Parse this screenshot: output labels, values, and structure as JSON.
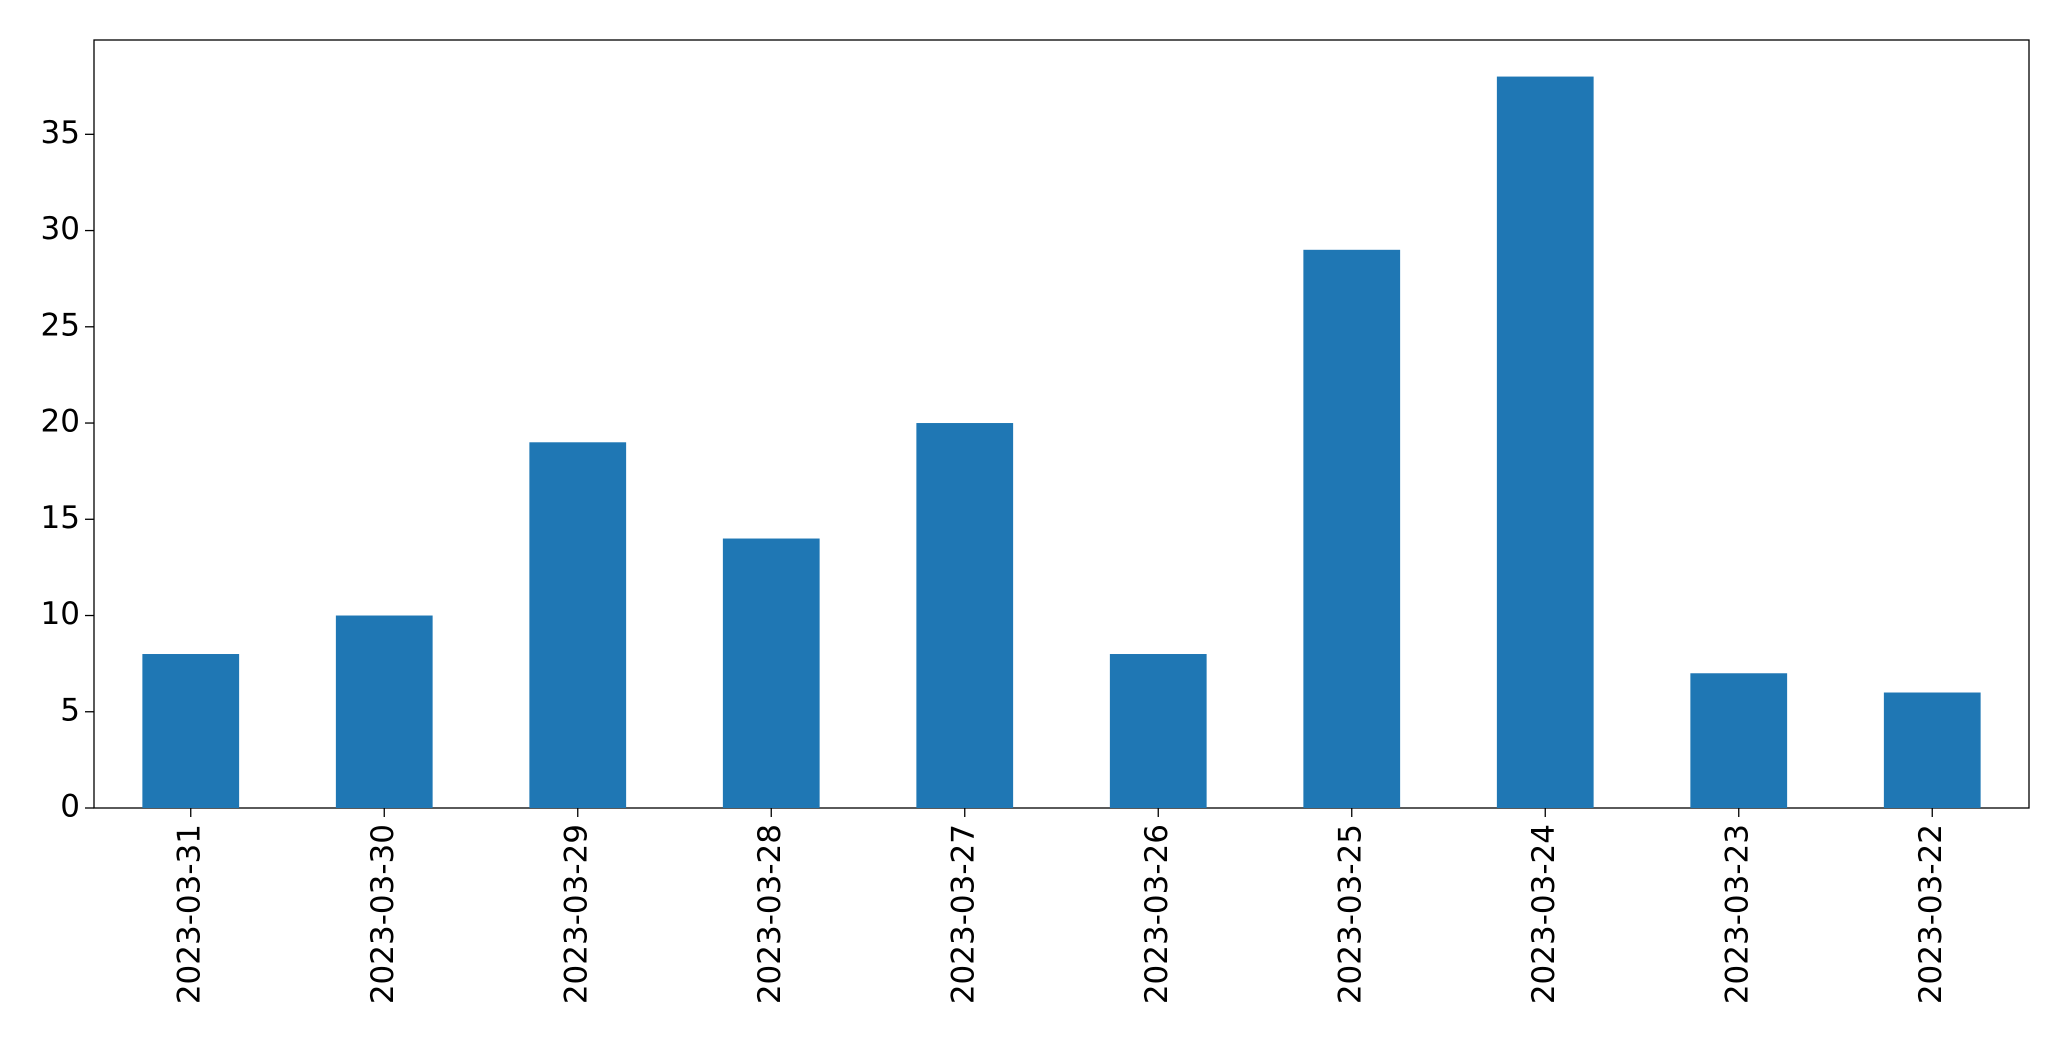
{
  "chart_data": {
    "type": "bar",
    "categories": [
      "2023-03-31",
      "2023-03-30",
      "2023-03-29",
      "2023-03-28",
      "2023-03-27",
      "2023-03-26",
      "2023-03-25",
      "2023-03-24",
      "2023-03-23",
      "2023-03-22"
    ],
    "values": [
      8,
      10,
      19,
      14,
      20,
      8,
      29,
      38,
      7,
      6
    ],
    "color": "#1f77b4",
    "ylim": [
      0,
      39.9
    ],
    "yticks": [
      0,
      5,
      10,
      15,
      20,
      25,
      30,
      35
    ],
    "grid": false
  }
}
